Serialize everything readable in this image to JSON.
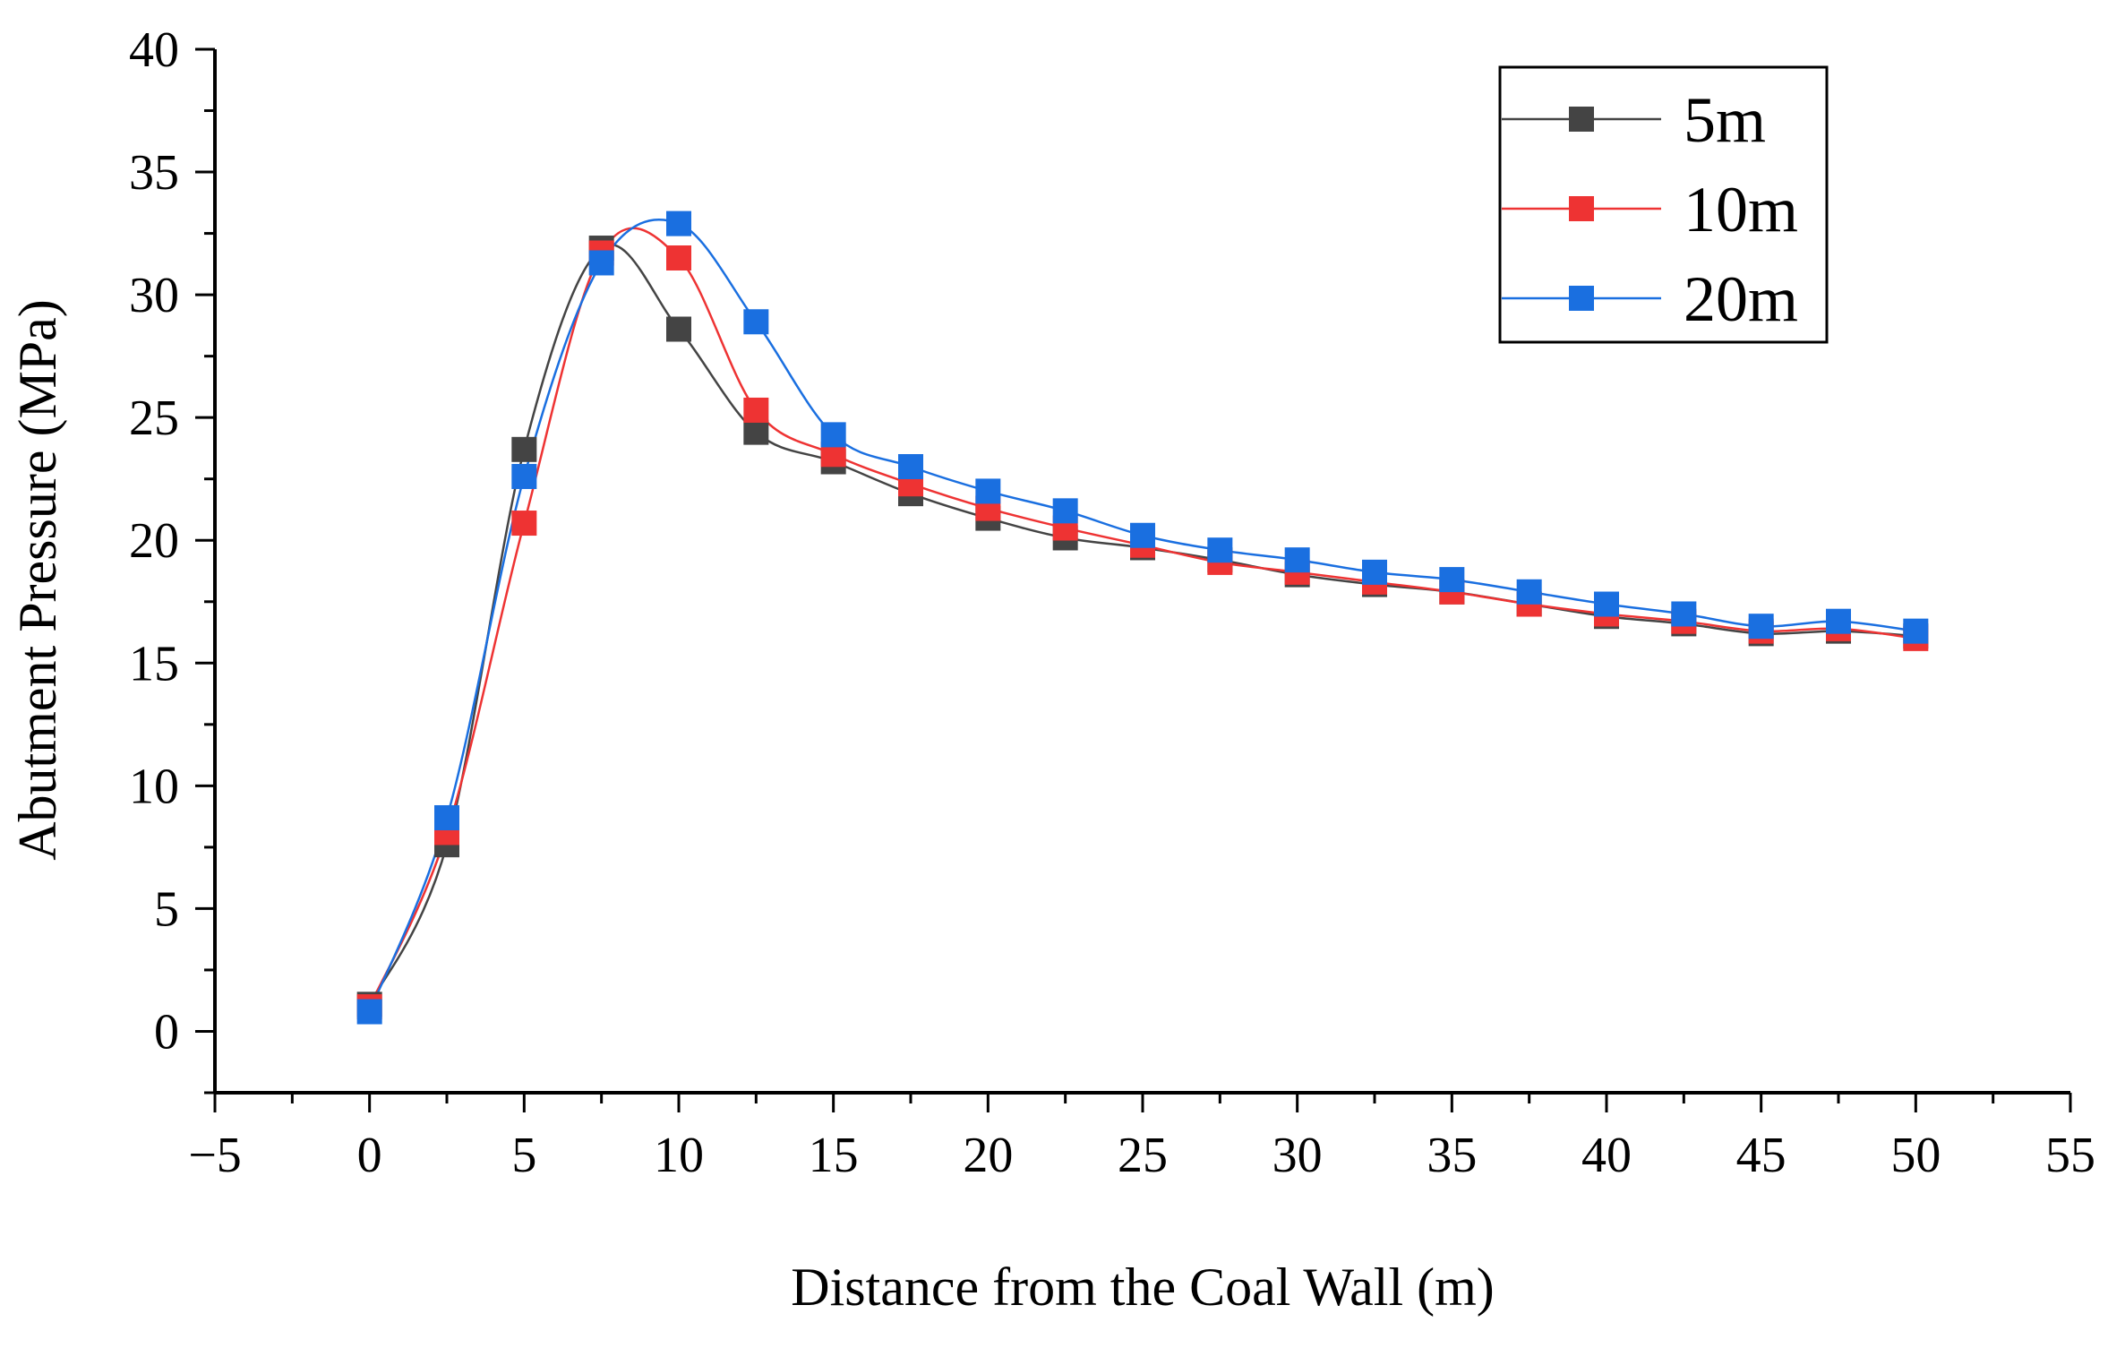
{
  "chart_data": {
    "type": "line",
    "title": "",
    "xlabel": "Distance from the Coal Wall (m)",
    "ylabel": "Abutment Pressure (MPa)",
    "xlim": [
      -5,
      55
    ],
    "ylim": [
      -2.5,
      40
    ],
    "xticks": [
      -5,
      0,
      5,
      10,
      15,
      20,
      25,
      30,
      35,
      40,
      45,
      50,
      55
    ],
    "yticks": [
      0,
      5,
      10,
      15,
      20,
      25,
      30,
      35,
      40
    ],
    "xtick_labels": [
      "−5",
      "0",
      "5",
      "10",
      "15",
      "20",
      "25",
      "30",
      "35",
      "40",
      "45",
      "50",
      "55"
    ],
    "ytick_labels": [
      "0",
      "5",
      "10",
      "15",
      "20",
      "25",
      "30",
      "35",
      "40"
    ],
    "grid": false,
    "legend_position": "top-right",
    "x": [
      0,
      2.5,
      5,
      7.5,
      10,
      12.5,
      15,
      17.5,
      20,
      22.5,
      25,
      27.5,
      30,
      32.5,
      35,
      37.5,
      40,
      42.5,
      45,
      47.5,
      50
    ],
    "series": [
      {
        "name": "5m",
        "color": "#444444",
        "marker": "square",
        "values": [
          1.1,
          7.6,
          23.7,
          31.9,
          28.6,
          24.4,
          23.2,
          21.9,
          20.9,
          20.1,
          19.7,
          19.2,
          18.6,
          18.2,
          17.9,
          17.4,
          16.9,
          16.6,
          16.2,
          16.3,
          16.1
        ]
      },
      {
        "name": "10m",
        "color": "#ee3333",
        "marker": "square",
        "values": [
          1.0,
          8.1,
          20.7,
          31.7,
          31.5,
          25.3,
          23.5,
          22.3,
          21.3,
          20.5,
          19.8,
          19.1,
          18.7,
          18.3,
          17.9,
          17.4,
          17.0,
          16.7,
          16.3,
          16.4,
          16.0
        ]
      },
      {
        "name": "20m",
        "color": "#1a6fe0",
        "marker": "square",
        "values": [
          0.8,
          8.7,
          22.6,
          31.3,
          32.9,
          28.9,
          24.3,
          23.0,
          22.0,
          21.2,
          20.2,
          19.6,
          19.2,
          18.7,
          18.4,
          17.9,
          17.4,
          17.0,
          16.5,
          16.7,
          16.3
        ]
      }
    ]
  }
}
